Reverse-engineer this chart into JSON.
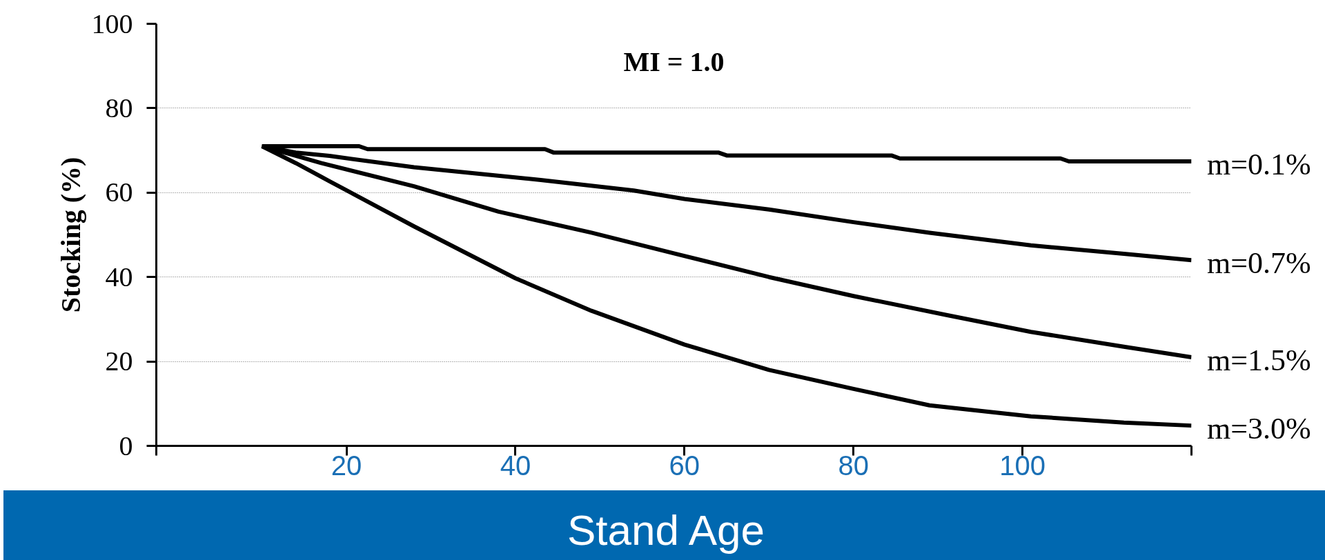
{
  "chart_data": {
    "type": "line",
    "xlabel": "Stand Age",
    "ylabel": "Stocking (%)",
    "annotations": [
      "MI = 1.0"
    ],
    "xlim": [
      -2.5,
      120
    ],
    "xticks": [
      {
        "value": -2.5,
        "label": null
      },
      20,
      40,
      60,
      80,
      100,
      {
        "value": 120,
        "label": null
      }
    ],
    "ylim": [
      0,
      100
    ],
    "yticks": [
      0,
      20,
      40,
      60,
      80,
      100
    ],
    "grid": "y",
    "legend": false,
    "line_style": "solid",
    "marker": "none",
    "series": [
      {
        "name": "m=0.1%",
        "color": "#000000",
        "x": [
          10,
          21.5,
          22.5,
          43.5,
          44.5,
          64,
          65,
          84.5,
          85.5,
          104.5,
          105.5,
          120
        ],
        "values": [
          71,
          71,
          70.3,
          70.3,
          69.5,
          69.5,
          68.8,
          68.8,
          68.1,
          68.1,
          67.4,
          67.4
        ]
      },
      {
        "name": "m=0.7%",
        "color": "#000000",
        "x": [
          10,
          14,
          18,
          28,
          43,
          54,
          60,
          70,
          80,
          89,
          101,
          112,
          120
        ],
        "values": [
          71,
          69.5,
          68.7,
          66,
          63,
          60.5,
          58.5,
          56,
          53,
          50.5,
          47.5,
          45.5,
          44
        ]
      },
      {
        "name": "m=1.5%",
        "color": "#000000",
        "x": [
          10,
          17,
          28,
          38,
          49,
          59,
          70,
          80,
          91,
          101,
          112,
          120
        ],
        "values": [
          71,
          67,
          61.5,
          55.5,
          50.5,
          45.5,
          40,
          35.5,
          31,
          27,
          23.5,
          21
        ]
      },
      {
        "name": "m=3.0%",
        "color": "#000000",
        "x": [
          10,
          14,
          18,
          28,
          40,
          49,
          60,
          70,
          80,
          89,
          101,
          112,
          120
        ],
        "values": [
          71,
          67,
          62.7,
          52,
          39.7,
          32,
          24,
          18,
          13.5,
          9.6,
          7,
          5.5,
          4.8
        ]
      }
    ]
  }
}
